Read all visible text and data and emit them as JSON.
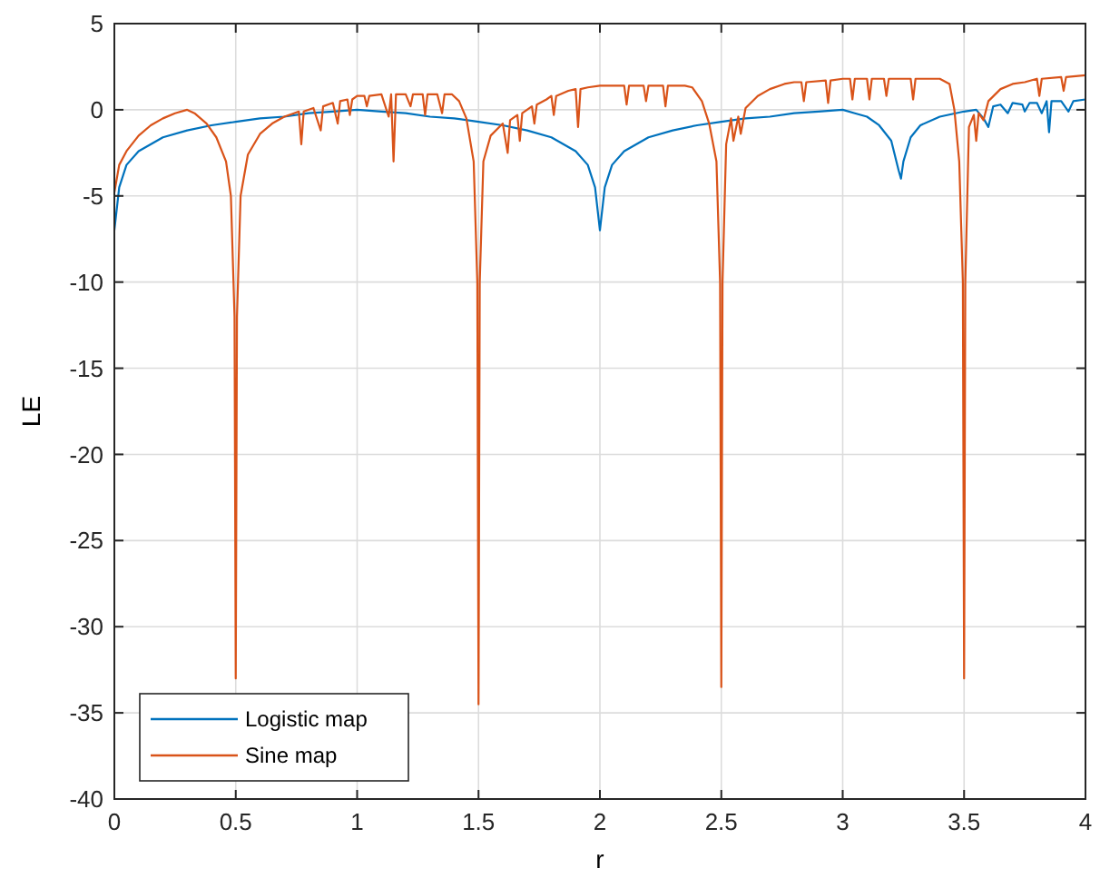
{
  "chart_data": {
    "type": "line",
    "xlabel": "r",
    "ylabel": "LE",
    "xlim": [
      0,
      4
    ],
    "ylim": [
      -40,
      5
    ],
    "xticks": [
      0,
      0.5,
      1,
      1.5,
      2,
      2.5,
      3,
      3.5,
      4
    ],
    "yticks": [
      -40,
      -35,
      -30,
      -25,
      -20,
      -15,
      -10,
      -5,
      0,
      5
    ],
    "grid": true,
    "legend": "bottom left",
    "marker": "none",
    "line_style": "solid",
    "series": [
      {
        "name": "Logistic map",
        "color": "#0072bd",
        "x": [
          0,
          0.02,
          0.05,
          0.1,
          0.2,
          0.3,
          0.4,
          0.5,
          0.6,
          0.7,
          0.8,
          0.9,
          1.0,
          1.1,
          1.2,
          1.3,
          1.4,
          1.5,
          1.6,
          1.7,
          1.8,
          1.9,
          1.95,
          1.98,
          2.0,
          2.02,
          2.05,
          2.1,
          2.2,
          2.3,
          2.4,
          2.5,
          2.6,
          2.7,
          2.8,
          2.9,
          3.0,
          3.05,
          3.1,
          3.15,
          3.2,
          3.23,
          3.24,
          3.25,
          3.28,
          3.32,
          3.4,
          3.5,
          3.55,
          3.58,
          3.6,
          3.62,
          3.65,
          3.68,
          3.7,
          3.74,
          3.75,
          3.77,
          3.8,
          3.82,
          3.84,
          3.85,
          3.86,
          3.9,
          3.93,
          3.95,
          4.0
        ],
        "values": [
          -7,
          -4.5,
          -3.2,
          -2.4,
          -1.6,
          -1.2,
          -0.9,
          -0.7,
          -0.5,
          -0.4,
          -0.2,
          -0.1,
          0,
          -0.1,
          -0.2,
          -0.4,
          -0.5,
          -0.7,
          -0.9,
          -1.2,
          -1.6,
          -2.4,
          -3.2,
          -4.5,
          -7,
          -4.5,
          -3.2,
          -2.4,
          -1.6,
          -1.2,
          -0.9,
          -0.7,
          -0.5,
          -0.4,
          -0.2,
          -0.1,
          0,
          -0.2,
          -0.4,
          -0.9,
          -1.8,
          -3.5,
          -4,
          -3,
          -1.6,
          -0.9,
          -0.4,
          -0.1,
          0,
          -0.5,
          -1.0,
          0.2,
          0.3,
          -0.2,
          0.4,
          0.3,
          -0.1,
          0.4,
          0.4,
          -0.2,
          0.5,
          -1.3,
          0.5,
          0.5,
          -0.1,
          0.5,
          0.6
        ]
      },
      {
        "name": "Sine map",
        "color": "#d95319",
        "x": [
          0,
          0.02,
          0.05,
          0.1,
          0.15,
          0.2,
          0.25,
          0.3,
          0.33,
          0.38,
          0.42,
          0.46,
          0.48,
          0.495,
          0.5,
          0.505,
          0.52,
          0.55,
          0.6,
          0.65,
          0.7,
          0.74,
          0.76,
          0.77,
          0.78,
          0.82,
          0.85,
          0.86,
          0.9,
          0.92,
          0.93,
          0.96,
          0.97,
          0.98,
          1.0,
          1.03,
          1.04,
          1.05,
          1.1,
          1.13,
          1.14,
          1.15,
          1.16,
          1.2,
          1.22,
          1.23,
          1.27,
          1.28,
          1.29,
          1.33,
          1.35,
          1.36,
          1.39,
          1.42,
          1.45,
          1.48,
          1.495,
          1.5,
          1.505,
          1.52,
          1.55,
          1.6,
          1.62,
          1.63,
          1.66,
          1.67,
          1.68,
          1.72,
          1.73,
          1.74,
          1.78,
          1.8,
          1.81,
          1.82,
          1.87,
          1.9,
          1.91,
          1.92,
          1.95,
          2.0,
          2.05,
          2.1,
          2.11,
          2.12,
          2.18,
          2.19,
          2.2,
          2.26,
          2.27,
          2.28,
          2.35,
          2.38,
          2.42,
          2.45,
          2.48,
          2.495,
          2.5,
          2.505,
          2.52,
          2.54,
          2.55,
          2.57,
          2.58,
          2.6,
          2.65,
          2.7,
          2.76,
          2.8,
          2.83,
          2.84,
          2.85,
          2.93,
          2.94,
          2.95,
          3.0,
          3.03,
          3.04,
          3.05,
          3.1,
          3.11,
          3.12,
          3.17,
          3.18,
          3.19,
          3.28,
          3.29,
          3.3,
          3.4,
          3.44,
          3.46,
          3.48,
          3.495,
          3.5,
          3.505,
          3.52,
          3.54,
          3.55,
          3.56,
          3.58,
          3.6,
          3.65,
          3.7,
          3.75,
          3.8,
          3.81,
          3.82,
          3.9,
          3.91,
          3.92,
          4.0
        ],
        "values": [
          -4.8,
          -3.2,
          -2.4,
          -1.5,
          -0.9,
          -0.5,
          -0.2,
          0.0,
          -0.2,
          -0.8,
          -1.6,
          -3,
          -5,
          -12,
          -33,
          -12,
          -5,
          -2.6,
          -1.4,
          -0.8,
          -0.4,
          -0.2,
          -0.1,
          -2,
          -0.1,
          0.1,
          -1.2,
          0.2,
          0.4,
          -0.8,
          0.5,
          0.6,
          -0.3,
          0.6,
          0.8,
          0.8,
          0.2,
          0.8,
          0.9,
          -0.4,
          0.9,
          -3,
          0.9,
          0.9,
          0.2,
          0.9,
          0.9,
          -0.3,
          0.9,
          0.9,
          -0.2,
          0.9,
          0.9,
          0.5,
          -0.5,
          -3,
          -10,
          -34.5,
          -10,
          -3,
          -1.5,
          -0.8,
          -2.5,
          -0.6,
          -0.3,
          -1.8,
          -0.2,
          0.2,
          -0.8,
          0.3,
          0.6,
          0.8,
          -0.3,
          0.8,
          1.1,
          1.2,
          -1,
          1.2,
          1.3,
          1.4,
          1.4,
          1.4,
          0.3,
          1.4,
          1.4,
          0.5,
          1.4,
          1.4,
          0.2,
          1.4,
          1.4,
          1.3,
          0.5,
          -0.8,
          -3,
          -10,
          -33.5,
          -10,
          -2,
          -0.5,
          -1.8,
          -0.4,
          -1.4,
          0.1,
          0.8,
          1.2,
          1.5,
          1.6,
          1.6,
          0.5,
          1.6,
          1.7,
          0.4,
          1.7,
          1.8,
          1.8,
          0.6,
          1.8,
          1.8,
          0.6,
          1.8,
          1.8,
          0.8,
          1.8,
          1.8,
          0.6,
          1.8,
          1.8,
          1.5,
          0,
          -3,
          -10,
          -33,
          -10,
          -1,
          -0.3,
          -1.8,
          -0.2,
          -0.6,
          0.5,
          1.2,
          1.5,
          1.6,
          1.8,
          0.8,
          1.8,
          1.9,
          1.1,
          1.9,
          2.0
        ]
      }
    ]
  }
}
